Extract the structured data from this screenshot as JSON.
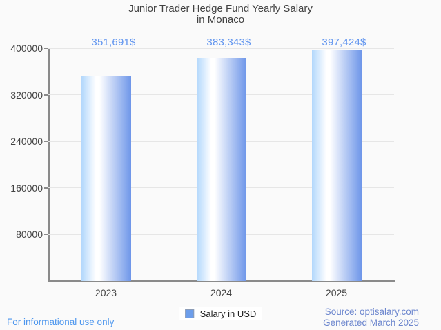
{
  "header": {
    "title_line1": "Junior Trader Hedge Fund Yearly Salary",
    "title_line2": "in Monaco"
  },
  "chart_data": {
    "type": "bar",
    "title": "Junior Trader Hedge Fund Yearly Salary in Monaco",
    "categories": [
      "2023",
      "2024",
      "2025"
    ],
    "series": [
      {
        "name": "Salary in USD",
        "values": [
          351691,
          383343,
          397424
        ]
      }
    ],
    "value_labels": [
      "351,691$",
      "383,343$",
      "397,424$"
    ],
    "xlabel": "",
    "ylabel": "",
    "ylim": [
      0,
      400000
    ],
    "yticks": [
      400000,
      320000,
      240000,
      160000,
      80000
    ],
    "grid": "horizontal",
    "legend_position": "bottom-center"
  },
  "legend": {
    "label": "Salary in USD"
  },
  "footer": {
    "disclaimer": "For informational use only",
    "source": "Source: optisalary.com",
    "generated": "Generated March 2025"
  },
  "colors": {
    "background": "#fafafa",
    "title_text": "#424242",
    "axis_text": "#424242",
    "gridline": "#e6e6e6",
    "axis_line": "#8a8a8a",
    "data_label": "#6195ef",
    "bar_gradient_left": "#b2d7fc",
    "bar_gradient_highlight": "#ffffff",
    "bar_gradient_right": "#6e96e9",
    "legend_swatch_fill": "#6d9eeb",
    "legend_swatch_border": "#8c9cb5",
    "disclaimer_text": "#4e97ee",
    "source_text": "#6d87ce"
  }
}
